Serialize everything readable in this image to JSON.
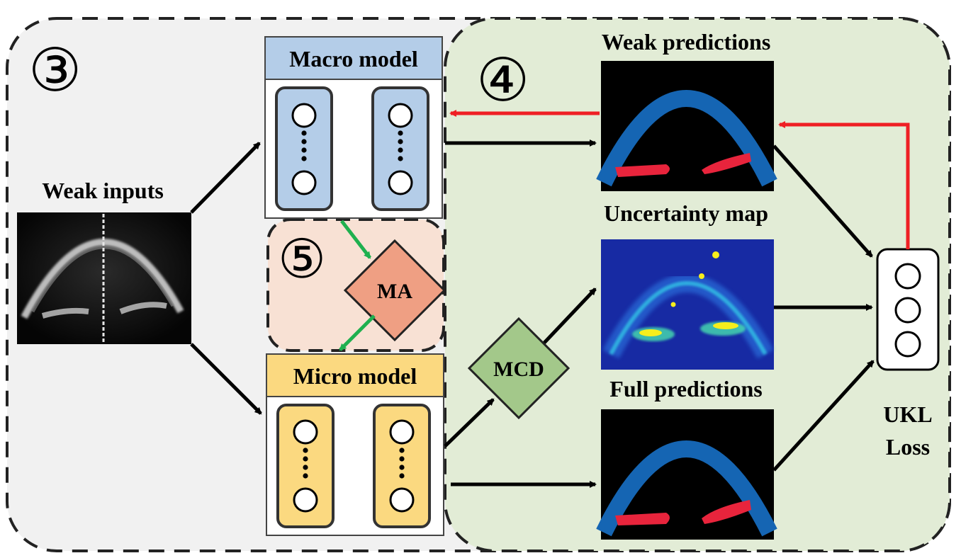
{
  "steps": {
    "step3": "③",
    "step4": "④",
    "step5": "⑤"
  },
  "labels": {
    "weak_inputs": "Weak inputs",
    "macro_model": "Macro model",
    "micro_model": "Micro model",
    "weak_predictions": "Weak predictions",
    "uncertainty_map": "Uncertainty map",
    "full_predictions": "Full predictions",
    "ma": "MA",
    "mcd": "MCD",
    "ukl": "UKL",
    "loss": "Loss"
  },
  "colors": {
    "macro_fill": "#b4cde8",
    "macro_header": "#b4cde8",
    "micro_fill": "#fbd980",
    "micro_header": "#fbd980",
    "ma_fill": "#ef9f83",
    "mcd_fill": "#a3c88a",
    "green_region": "#e2ecd6",
    "gray_region": "#f1f1f1",
    "peach_region": "#f8e1d4",
    "red_arrow": "#ef1f24",
    "green_arrow": "#1fb04f",
    "seg_blue": "#1565b3",
    "seg_red": "#e8243c"
  }
}
